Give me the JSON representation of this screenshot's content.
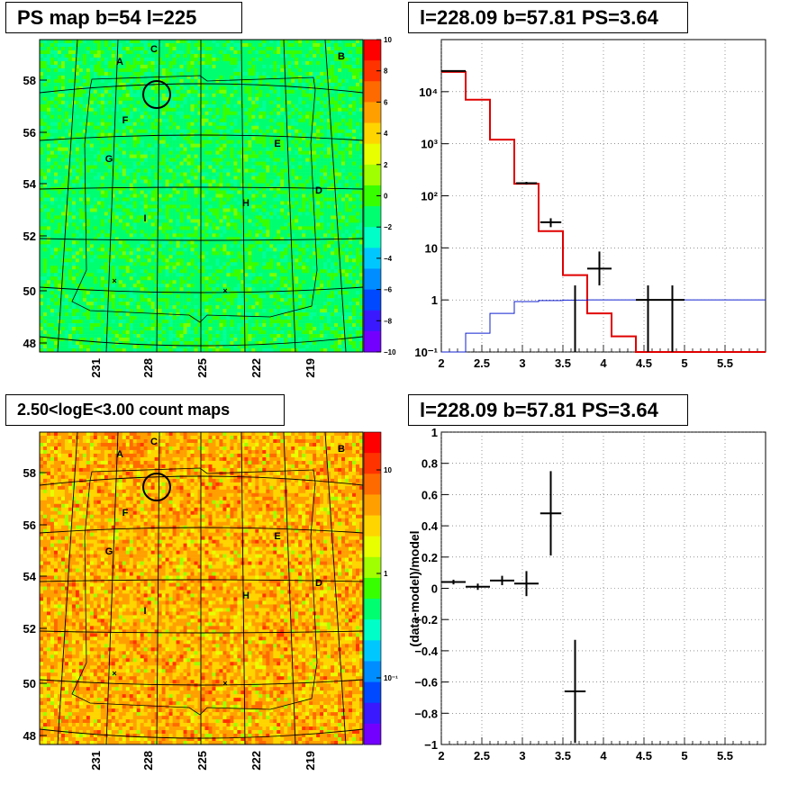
{
  "panels": {
    "ps_map": {
      "title": "PS map b=54 l=225",
      "ylim": [
        47.7,
        59.5
      ],
      "y_ticks": [
        "58",
        "56",
        "54",
        "52",
        "50",
        "48"
      ],
      "x_ticks": [
        "231",
        "228",
        "225",
        "222",
        "219"
      ],
      "colorbar_ticks": [
        "10",
        "8",
        "6",
        "4",
        "2",
        "0",
        "−2",
        "−4",
        "−6",
        "−8",
        "−10"
      ],
      "region_labels": [
        "A",
        "B",
        "C",
        "D",
        "E",
        "F",
        "G",
        "H",
        "I"
      ]
    },
    "count_map": {
      "title": "2.50<logE<3.00 count maps",
      "y_ticks": [
        "58",
        "56",
        "54",
        "52",
        "50",
        "48"
      ],
      "x_ticks": [
        "231",
        "228",
        "225",
        "222",
        "219"
      ],
      "colorbar_ticks": [
        "10",
        "1",
        "10⁻¹"
      ],
      "region_labels": [
        "A",
        "B",
        "C",
        "D",
        "E",
        "F",
        "G",
        "H",
        "I"
      ]
    },
    "spectrum": {
      "title": "l=228.09 b=57.81 PS=3.64"
    },
    "residual": {
      "title": "l=228.09 b=57.81 PS=3.64"
    }
  },
  "chart_data": [
    {
      "type": "heatmap",
      "title": "PS map b=54 l=225",
      "colorscale_range": [
        -10,
        10
      ],
      "markers": [
        "circle near l=227.9 b=57.6",
        "x near l=229.8 b=50.3",
        "x near l=223.2 b=49.9"
      ]
    },
    {
      "type": "line",
      "title": "l=228.09 b=57.81 PS=3.64",
      "xlim": [
        2,
        6
      ],
      "ylim": [
        0.1,
        100000
      ],
      "yscale": "log",
      "x_ticks": [
        "2",
        "2.5",
        "3",
        "3.5",
        "4",
        "4.5",
        "5",
        "5.5"
      ],
      "y_ticks": [
        "10⁴",
        "10³",
        "10²",
        "10",
        "1",
        "10⁻¹"
      ],
      "grid": true,
      "series": [
        {
          "color": "#e00000",
          "bin_edges": [
            2.0,
            2.3,
            2.6,
            2.9,
            3.2,
            3.5,
            3.8,
            4.1,
            4.4,
            6.0
          ],
          "values": [
            24000,
            7000,
            1200,
            170,
            21,
            3.0,
            0.55,
            0.2,
            0.1
          ]
        },
        {
          "color": "#1020d0",
          "bin_edges": [
            2.0,
            2.3,
            2.6,
            2.9,
            3.2,
            3.5,
            3.8,
            6.0
          ],
          "values": [
            0.08,
            0.23,
            0.55,
            0.93,
            0.97,
            0.99,
            1.0
          ]
        },
        {
          "color": "#000000",
          "points": [
            {
              "x": 2.15,
              "y": 25000,
              "xerr": 0.15,
              "ylo": 24500,
              "yhi": 25500
            },
            {
              "x": 3.05,
              "y": 175,
              "xerr": 0.13,
              "ylo": 165,
              "yhi": 185
            },
            {
              "x": 3.35,
              "y": 31,
              "xerr": 0.13,
              "ylo": 25,
              "yhi": 37
            },
            {
              "x": 3.95,
              "y": 4.0,
              "xerr": 0.15,
              "ylo": 1.9,
              "yhi": 8.5
            },
            {
              "x": 3.65,
              "y": 0.07,
              "xerr": 0,
              "ylo": 0.07,
              "yhi": 1.9
            },
            {
              "x": 4.55,
              "y": 1.0,
              "xerr": 0.15,
              "ylo": 0.07,
              "yhi": 1.9
            },
            {
              "x": 4.85,
              "y": 1.0,
              "xerr": 0.15,
              "ylo": 0.07,
              "yhi": 1.9
            }
          ]
        }
      ]
    },
    {
      "type": "heatmap",
      "title": "2.50<logE<3.00 count maps",
      "colorscale": "log",
      "colorscale_range": [
        0.03,
        30
      ]
    },
    {
      "type": "scatter",
      "title": "l=228.09 b=57.81 PS=3.64",
      "xlim": [
        2,
        6
      ],
      "ylim": [
        -1,
        1
      ],
      "ylabel": "(data-model)/model",
      "x_ticks": [
        "2",
        "2.5",
        "3",
        "3.5",
        "4",
        "4.5",
        "5",
        "5.5"
      ],
      "y_ticks": [
        "1",
        "0.8",
        "0.6",
        "0.4",
        "0.2",
        "0",
        "−0.2",
        "−0.4",
        "−0.6",
        "−0.8",
        "−1"
      ],
      "grid": true,
      "points": [
        {
          "x": 2.15,
          "y": 0.04,
          "xerr": 0.15,
          "yerr": 0.015
        },
        {
          "x": 2.45,
          "y": 0.01,
          "xerr": 0.15,
          "yerr": 0.02
        },
        {
          "x": 2.75,
          "y": 0.05,
          "xerr": 0.15,
          "yerr": 0.03
        },
        {
          "x": 3.05,
          "y": 0.03,
          "xerr": 0.15,
          "yerr": 0.08
        },
        {
          "x": 3.35,
          "y": 0.48,
          "xerr": 0.13,
          "yerr": 0.27
        },
        {
          "x": 3.65,
          "y": -0.66,
          "xerr": 0.13,
          "yerr": 0.33
        }
      ]
    }
  ]
}
